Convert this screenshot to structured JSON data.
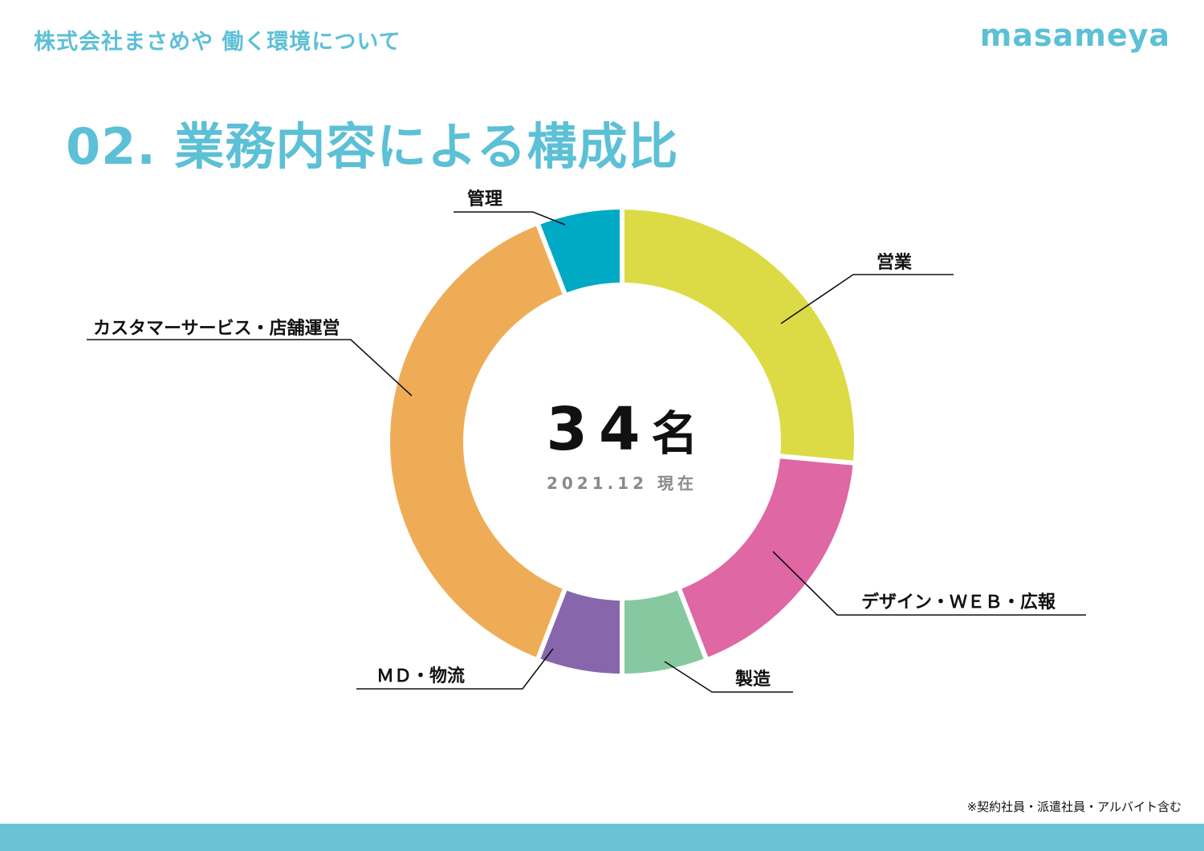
{
  "header": {
    "title": "株式会社まさめや 働く環境について",
    "logo": "masameya"
  },
  "page": {
    "title": "02. 業務内容による構成比"
  },
  "center": {
    "total_number": "34",
    "total_unit": "名",
    "as_of": "2021.12 現在"
  },
  "footnote": "※契約社員・派遣社員・アルバイト含む",
  "colors": {
    "accent": "#5cc0d6",
    "footer_bar": "#69c3d5"
  },
  "chart_data": {
    "type": "pie",
    "subtype": "donut",
    "title": "02. 業務内容による構成比",
    "total": 34,
    "total_label": "34名",
    "as_of": "2021.12 現在",
    "note": "Only the total (34) is printed on the chart. Per-segment values are estimates read from segment angles, not labeled data.",
    "start_angle_deg": 0,
    "direction": "clockwise",
    "categories": [
      "営業",
      "デザイン・ＷＥＢ・広報",
      "製造",
      "ＭＤ・物流",
      "カスタマーサービス・店舗運営",
      "管理"
    ],
    "values": [
      9,
      6,
      2,
      2,
      13,
      2
    ],
    "values_are_estimates": true,
    "colors": [
      "#dcdb45",
      "#df67a3",
      "#86c9a0",
      "#8866ab",
      "#efac57",
      "#00a9c4"
    ],
    "legend": "callout labels with leader lines"
  }
}
